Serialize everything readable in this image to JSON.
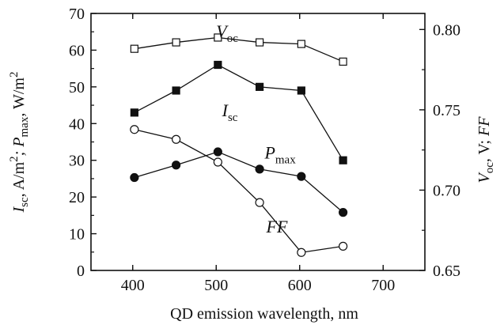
{
  "chart_data": {
    "type": "line",
    "xlabel": "QD emission wavelength, nm",
    "xlim": [
      350,
      750
    ],
    "xticks": [
      "400",
      "500",
      "600",
      "700"
    ],
    "left_axis": {
      "label_parts": [
        "I",
        "sc",
        ", A/m",
        "2",
        "; P",
        "max",
        ", W/m",
        "2"
      ],
      "ylim": [
        0,
        70
      ],
      "ticks": [
        "0",
        "10",
        "20",
        "30",
        "40",
        "50",
        "60",
        "70"
      ]
    },
    "right_axis": {
      "label_parts": [
        "V",
        "oc",
        ", V; ",
        "FF"
      ],
      "ylim": [
        0.65,
        0.81
      ],
      "ticks": [
        "0.65",
        "0.70",
        "0.75",
        "0.80"
      ]
    },
    "series": [
      {
        "name_main": "V",
        "name_sub": "oc",
        "axis": "right",
        "marker": "open-square",
        "label_x": 500,
        "label_y": 63.5,
        "x": [
          402,
          452,
          502,
          552,
          602,
          652
        ],
        "y": [
          0.788,
          0.792,
          0.795,
          0.792,
          0.791,
          0.78
        ]
      },
      {
        "name_main": "I",
        "name_sub": "sc",
        "axis": "left",
        "marker": "filled-square",
        "label_x": 507,
        "label_y": 42,
        "x": [
          402,
          452,
          502,
          552,
          602,
          652
        ],
        "y": [
          43,
          49,
          56,
          50,
          49,
          30
        ]
      },
      {
        "name_main": "P",
        "name_sub": "max",
        "axis": "left",
        "marker": "filled-circle",
        "label_x": 558,
        "label_y": 30.5,
        "x": [
          402,
          452,
          502,
          552,
          602,
          652
        ],
        "y": [
          25.3,
          28.7,
          32.3,
          27.6,
          25.6,
          15.8
        ]
      },
      {
        "name_main": "FF",
        "name_sub": "",
        "axis": "left",
        "marker": "open-circle",
        "label_x": 560,
        "label_y": 10.3,
        "x": [
          402,
          452,
          502,
          552,
          602,
          652
        ],
        "y": [
          38.4,
          35.7,
          29.5,
          18.5,
          4.9,
          6.6
        ]
      }
    ],
    "grid": false,
    "colors": {
      "line": "#111111",
      "marker_fill_open": "#ffffff",
      "marker_fill_filled": "#111111"
    }
  }
}
